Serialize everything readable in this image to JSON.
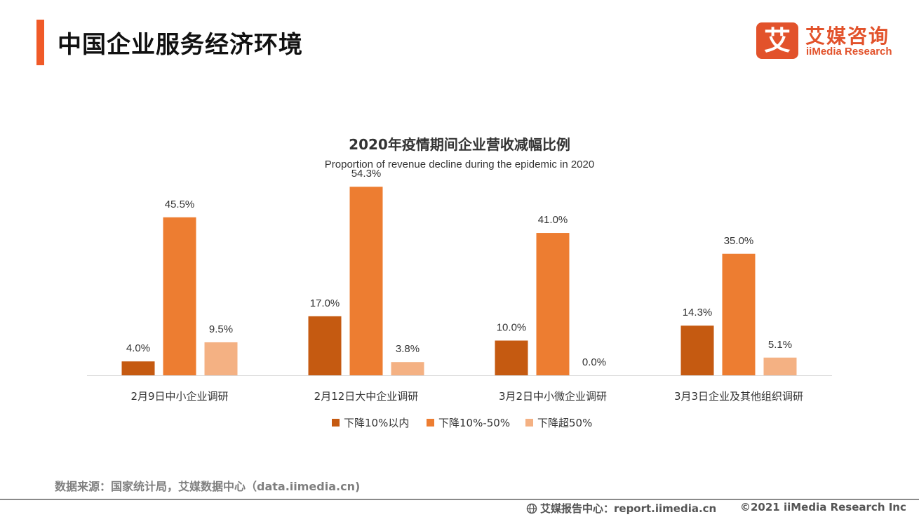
{
  "header": {
    "title": "中国企业服务经济环境",
    "logo_mark": "艾",
    "logo_cn": "艾媒咨询",
    "logo_en": "iiMedia Research"
  },
  "colors": {
    "accent": "#F05A28",
    "logo": "#E2522B",
    "series": [
      "#C55A11",
      "#ED7D31",
      "#F4B183"
    ]
  },
  "chart_data": {
    "type": "bar",
    "title": "2020年疫情期间企业营收减幅比例",
    "subtitle": "Proportion of revenue decline during the epidemic in 2020",
    "categories": [
      "2月9日中小企业调研",
      "2月12日大中企业调研",
      "3月2日中小微企业调研",
      "3月3日企业及其他组织调研"
    ],
    "series": [
      {
        "name": "下降10%以内",
        "values": [
          4.0,
          17.0,
          10.0,
          14.3
        ]
      },
      {
        "name": "下降10%-50%",
        "values": [
          45.5,
          54.3,
          41.0,
          35.0
        ]
      },
      {
        "name": "下降超50%",
        "values": [
          9.5,
          3.8,
          0.0,
          5.1
        ]
      }
    ],
    "value_suffix": "%",
    "ylim": [
      0,
      60
    ],
    "grid": false,
    "legend_position": "bottom"
  },
  "footer": {
    "source": "数据来源：国家统计局，艾媒数据中心（data.iimedia.cn)",
    "report": "艾媒报告中心：report.iimedia.cn",
    "copyright": "©2021  iiMedia Research  Inc",
    "globe_icon": "globe-icon"
  }
}
